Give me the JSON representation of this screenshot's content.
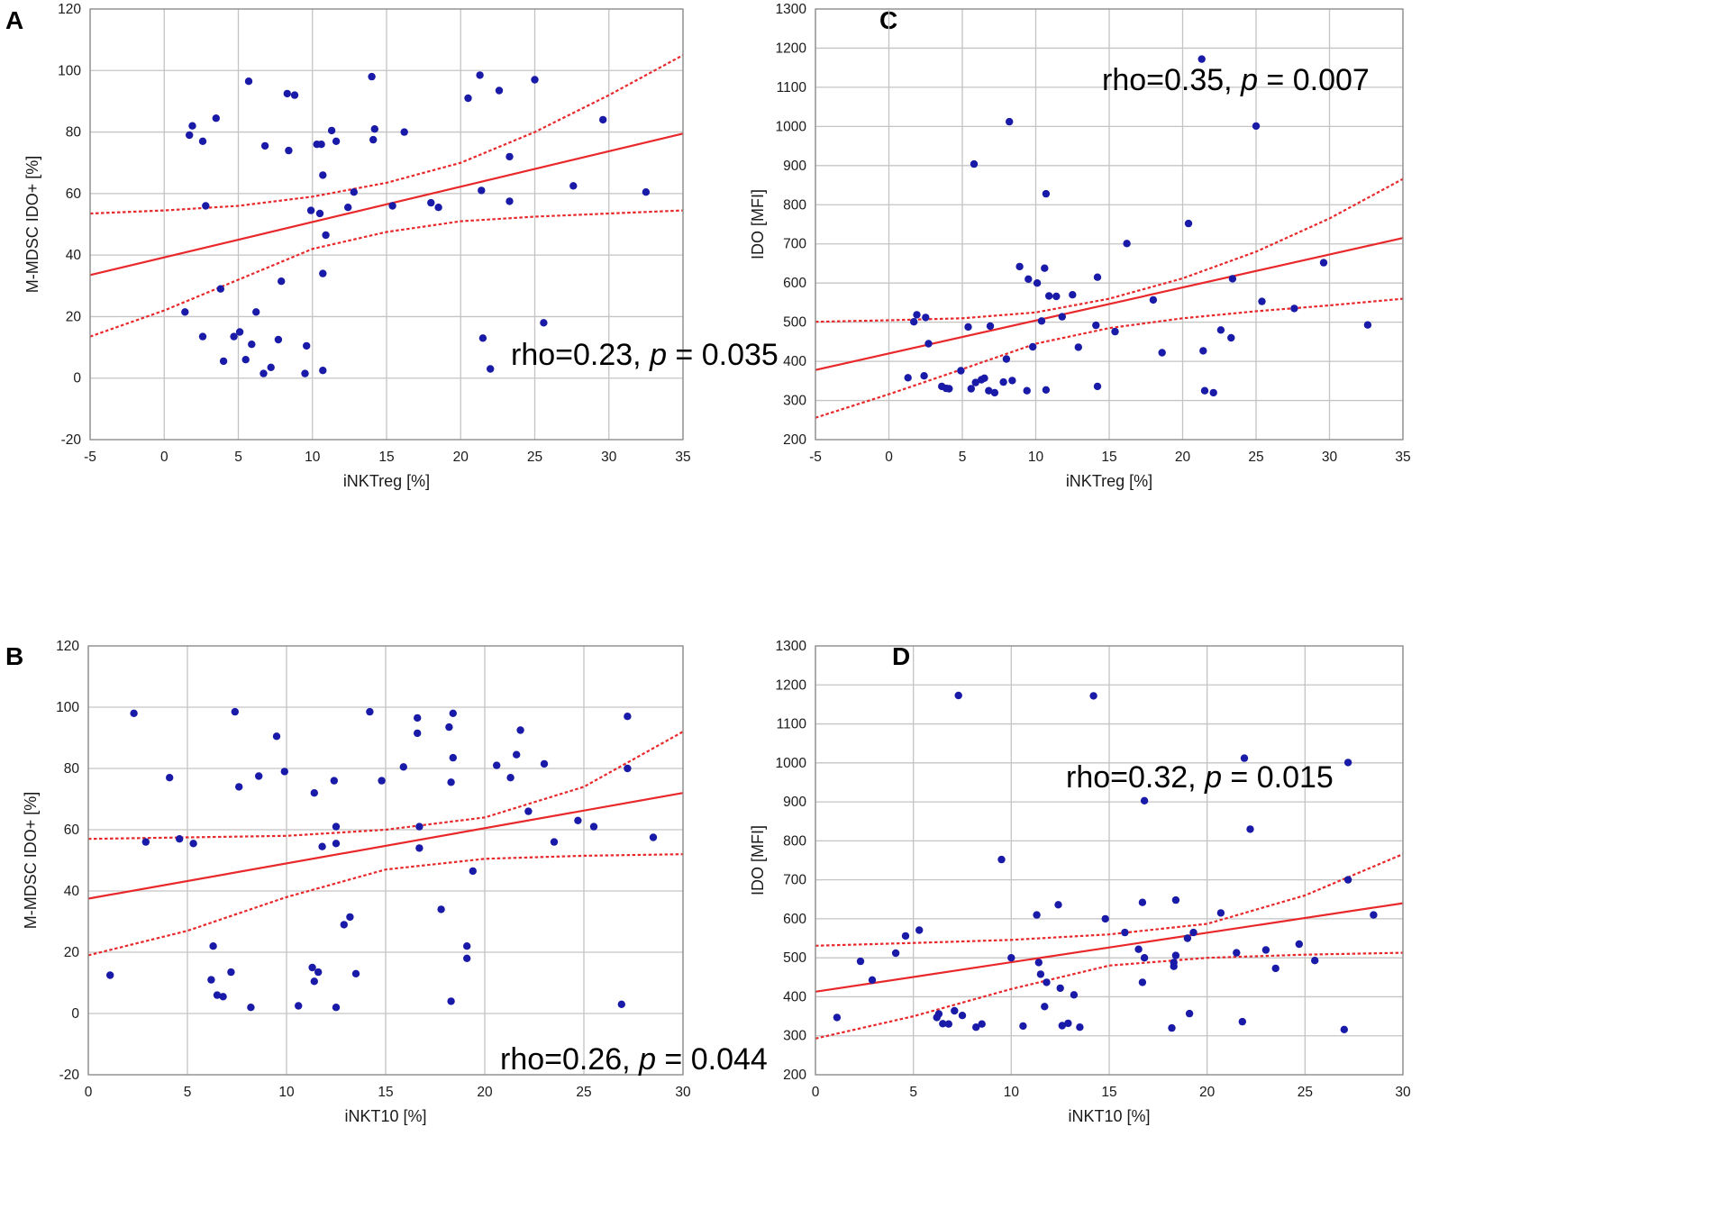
{
  "figure": {
    "point_color": "#1a1aa8",
    "line_color": "#e8282a"
  },
  "chart_data": [
    {
      "id": "A",
      "panel_label": "A",
      "type": "scatter",
      "xlabel": "iNKTreg [%]",
      "ylabel": "M-MDSC IDO+ [%]",
      "xlim": [
        -5,
        35
      ],
      "ylim": [
        -20,
        120
      ],
      "xticks": [
        -5,
        0,
        5,
        10,
        15,
        20,
        25,
        30,
        35
      ],
      "yticks": [
        -20,
        0,
        20,
        40,
        60,
        80,
        100,
        120
      ],
      "annotation": {
        "pre": "rho=0.23, ",
        "italic": "p",
        "post": " = 0.035"
      },
      "fit_line": [
        [
          -5,
          33.5
        ],
        [
          35,
          79.5
        ]
      ],
      "ci_upper": [
        [
          -5,
          53.5
        ],
        [
          0,
          54.5
        ],
        [
          5,
          56
        ],
        [
          10,
          59
        ],
        [
          15,
          63.5
        ],
        [
          20,
          70
        ],
        [
          25,
          80
        ],
        [
          30,
          92
        ],
        [
          35,
          105
        ]
      ],
      "ci_lower": [
        [
          -5,
          13.5
        ],
        [
          0,
          22
        ],
        [
          5,
          32
        ],
        [
          10,
          42
        ],
        [
          15,
          47.5
        ],
        [
          20,
          51
        ],
        [
          25,
          52.5
        ],
        [
          30,
          53.5
        ],
        [
          35,
          54.5
        ]
      ],
      "points": [
        [
          1.4,
          21.5
        ],
        [
          1.7,
          79
        ],
        [
          1.9,
          82
        ],
        [
          2.6,
          13.5
        ],
        [
          2.6,
          77
        ],
        [
          2.8,
          56
        ],
        [
          3.5,
          84.5
        ],
        [
          3.8,
          29
        ],
        [
          4,
          5.5
        ],
        [
          4.7,
          13.5
        ],
        [
          5.1,
          15
        ],
        [
          5.5,
          6
        ],
        [
          5.7,
          96.5
        ],
        [
          5.9,
          11
        ],
        [
          6.2,
          21.5
        ],
        [
          6.7,
          1.5
        ],
        [
          6.8,
          75.5
        ],
        [
          7.2,
          3.5
        ],
        [
          7.7,
          12.5
        ],
        [
          7.9,
          31.5
        ],
        [
          8.3,
          92.5
        ],
        [
          8.4,
          74
        ],
        [
          8.8,
          92
        ],
        [
          9.5,
          1.5
        ],
        [
          9.6,
          10.5
        ],
        [
          9.9,
          54.5
        ],
        [
          10.3,
          76
        ],
        [
          10.5,
          53.5
        ],
        [
          10.6,
          76
        ],
        [
          10.7,
          66
        ],
        [
          10.7,
          34
        ],
        [
          10.7,
          2.5
        ],
        [
          10.9,
          46.5
        ],
        [
          11.3,
          80.5
        ],
        [
          11.6,
          77
        ],
        [
          12.4,
          55.5
        ],
        [
          12.8,
          60.5
        ],
        [
          14,
          98
        ],
        [
          14.1,
          77.5
        ],
        [
          14.2,
          81
        ],
        [
          15.4,
          56
        ],
        [
          16.2,
          80
        ],
        [
          18,
          57
        ],
        [
          18.5,
          55.5
        ],
        [
          20.5,
          91
        ],
        [
          21.3,
          98.5
        ],
        [
          21.4,
          61
        ],
        [
          21.5,
          13
        ],
        [
          22,
          3
        ],
        [
          22.6,
          93.5
        ],
        [
          23.3,
          57.5
        ],
        [
          23.3,
          72
        ],
        [
          25,
          97
        ],
        [
          25.6,
          18
        ],
        [
          27.6,
          62.5
        ],
        [
          29.6,
          84
        ],
        [
          32.5,
          60.5
        ]
      ]
    },
    {
      "id": "B",
      "panel_label": "B",
      "type": "scatter",
      "xlabel": "iNKT10 [%]",
      "ylabel": "M-MDSC IDO+ [%]",
      "xlim": [
        0,
        30
      ],
      "ylim": [
        -20,
        120
      ],
      "xticks": [
        0,
        5,
        10,
        15,
        20,
        25,
        30
      ],
      "yticks": [
        -20,
        0,
        20,
        40,
        60,
        80,
        100,
        120
      ],
      "annotation": {
        "pre": "rho=0.26, ",
        "italic": "p",
        "post": " = 0.044"
      },
      "fit_line": [
        [
          0,
          37.5
        ],
        [
          30,
          72
        ]
      ],
      "ci_upper": [
        [
          0,
          57
        ],
        [
          5,
          57.5
        ],
        [
          10,
          58
        ],
        [
          15,
          60
        ],
        [
          20,
          64
        ],
        [
          25,
          74
        ],
        [
          30,
          92
        ]
      ],
      "ci_lower": [
        [
          0,
          19
        ],
        [
          5,
          27
        ],
        [
          10,
          38
        ],
        [
          15,
          47
        ],
        [
          20,
          50.5
        ],
        [
          25,
          51.5
        ],
        [
          30,
          52
        ]
      ],
      "points": [
        [
          1.1,
          12.5
        ],
        [
          2.3,
          98
        ],
        [
          2.9,
          56
        ],
        [
          4.1,
          77
        ],
        [
          4.6,
          57
        ],
        [
          5.3,
          55.5
        ],
        [
          6.2,
          11
        ],
        [
          6.3,
          22
        ],
        [
          6.5,
          6
        ],
        [
          6.8,
          5.5
        ],
        [
          7.2,
          13.5
        ],
        [
          7.4,
          98.5
        ],
        [
          7.6,
          74
        ],
        [
          8.2,
          2
        ],
        [
          8.6,
          77.5
        ],
        [
          9.5,
          90.5
        ],
        [
          9.9,
          79
        ],
        [
          10.6,
          2.5
        ],
        [
          11.3,
          15
        ],
        [
          11.4,
          72
        ],
        [
          11.4,
          10.5
        ],
        [
          11.6,
          13.5
        ],
        [
          11.8,
          54.5
        ],
        [
          12.4,
          76
        ],
        [
          12.5,
          2
        ],
        [
          12.5,
          61
        ],
        [
          12.5,
          55.5
        ],
        [
          12.9,
          29
        ],
        [
          13.2,
          31.5
        ],
        [
          13.5,
          13
        ],
        [
          14.2,
          98.5
        ],
        [
          14.8,
          76
        ],
        [
          15.9,
          80.5
        ],
        [
          16.6,
          96.5
        ],
        [
          16.6,
          91.5
        ],
        [
          16.7,
          61
        ],
        [
          16.7,
          54
        ],
        [
          17.8,
          34
        ],
        [
          18.2,
          93.5
        ],
        [
          18.3,
          4
        ],
        [
          18.3,
          75.5
        ],
        [
          18.4,
          98
        ],
        [
          18.4,
          83.5
        ],
        [
          19.1,
          22
        ],
        [
          19.1,
          18
        ],
        [
          19.4,
          46.5
        ],
        [
          20.6,
          81
        ],
        [
          21.3,
          77
        ],
        [
          21.6,
          84.5
        ],
        [
          21.8,
          92.5
        ],
        [
          22.2,
          66
        ],
        [
          23,
          81.5
        ],
        [
          23.5,
          56
        ],
        [
          24.7,
          63
        ],
        [
          25.5,
          61
        ],
        [
          26.9,
          3
        ],
        [
          27.2,
          97
        ],
        [
          27.2,
          80
        ],
        [
          28.5,
          57.5
        ]
      ]
    },
    {
      "id": "C",
      "panel_label": "C",
      "type": "scatter",
      "xlabel": "iNKTreg [%]",
      "ylabel": "IDO [MFI]",
      "xlim": [
        -5,
        35
      ],
      "ylim": [
        200,
        1300
      ],
      "xticks": [
        -5,
        0,
        5,
        10,
        15,
        20,
        25,
        30,
        35
      ],
      "yticks": [
        200,
        300,
        400,
        500,
        600,
        700,
        800,
        900,
        1000,
        1100,
        1200,
        1300
      ],
      "annotation": {
        "pre": "rho=0.35, ",
        "italic": "p",
        "post": " = 0.007"
      },
      "fit_line": [
        [
          -5,
          378
        ],
        [
          35,
          715
        ]
      ],
      "ci_upper": [
        [
          -5,
          501
        ],
        [
          0,
          505
        ],
        [
          5,
          510
        ],
        [
          10,
          525
        ],
        [
          15,
          560
        ],
        [
          20,
          612
        ],
        [
          25,
          680
        ],
        [
          30,
          765
        ],
        [
          35,
          866
        ]
      ],
      "ci_lower": [
        [
          -5,
          256
        ],
        [
          0,
          316
        ],
        [
          5,
          380
        ],
        [
          10,
          445
        ],
        [
          15,
          485
        ],
        [
          20,
          510
        ],
        [
          25,
          528
        ],
        [
          30,
          543
        ],
        [
          35,
          560
        ]
      ],
      "points": [
        [
          1.3,
          358
        ],
        [
          1.7,
          501
        ],
        [
          1.9,
          519
        ],
        [
          2.4,
          363
        ],
        [
          2.5,
          512
        ],
        [
          2.7,
          445
        ],
        [
          3.6,
          336
        ],
        [
          3.9,
          331
        ],
        [
          4.1,
          330
        ],
        [
          4.9,
          376
        ],
        [
          5.4,
          488
        ],
        [
          5.6,
          330
        ],
        [
          5.8,
          904
        ],
        [
          5.9,
          346
        ],
        [
          6.3,
          353
        ],
        [
          6.5,
          357
        ],
        [
          6.8,
          325
        ],
        [
          6.9,
          490
        ],
        [
          7.2,
          320
        ],
        [
          7.8,
          347
        ],
        [
          8,
          406
        ],
        [
          8.2,
          1012
        ],
        [
          8.4,
          351
        ],
        [
          8.9,
          642
        ],
        [
          9.4,
          325
        ],
        [
          9.5,
          610
        ],
        [
          9.8,
          437
        ],
        [
          10.1,
          600
        ],
        [
          10.4,
          503
        ],
        [
          10.6,
          638
        ],
        [
          10.7,
          828
        ],
        [
          10.7,
          327
        ],
        [
          10.9,
          567
        ],
        [
          11.4,
          566
        ],
        [
          11.8,
          514
        ],
        [
          12.5,
          570
        ],
        [
          12.9,
          436
        ],
        [
          14.1,
          492
        ],
        [
          14.2,
          615
        ],
        [
          14.2,
          336
        ],
        [
          15.4,
          476
        ],
        [
          16.2,
          701
        ],
        [
          18,
          557
        ],
        [
          18.6,
          422
        ],
        [
          20.4,
          752
        ],
        [
          21.3,
          1172
        ],
        [
          21.4,
          427
        ],
        [
          21.5,
          325
        ],
        [
          22.1,
          320
        ],
        [
          22.6,
          480
        ],
        [
          23.3,
          460
        ],
        [
          23.4,
          611
        ],
        [
          25,
          1001
        ],
        [
          25.4,
          553
        ],
        [
          27.6,
          535
        ],
        [
          29.6,
          652
        ],
        [
          32.6,
          493
        ]
      ]
    },
    {
      "id": "D",
      "panel_label": "D",
      "type": "scatter",
      "xlabel": "iNKT10 [%]",
      "ylabel": "IDO [MFI]",
      "xlim": [
        0,
        30
      ],
      "ylim": [
        200,
        1300
      ],
      "xticks": [
        0,
        5,
        10,
        15,
        20,
        25,
        30
      ],
      "yticks": [
        200,
        300,
        400,
        500,
        600,
        700,
        800,
        900,
        1000,
        1100,
        1200,
        1300
      ],
      "annotation": {
        "pre": "rho=0.32, ",
        "italic": "p",
        "post": " = 0.015"
      },
      "fit_line": [
        [
          0,
          413
        ],
        [
          30,
          640
        ]
      ],
      "ci_upper": [
        [
          0,
          531
        ],
        [
          5,
          538
        ],
        [
          10,
          546
        ],
        [
          15,
          560
        ],
        [
          20,
          587
        ],
        [
          25,
          660
        ],
        [
          30,
          766
        ]
      ],
      "ci_lower": [
        [
          0,
          293
        ],
        [
          5,
          350
        ],
        [
          10,
          420
        ],
        [
          15,
          480
        ],
        [
          20,
          500
        ],
        [
          25,
          508
        ],
        [
          30,
          513
        ]
      ],
      "points": [
        [
          1.1,
          347
        ],
        [
          2.3,
          491
        ],
        [
          2.9,
          443
        ],
        [
          4.1,
          512
        ],
        [
          4.6,
          556
        ],
        [
          5.3,
          571
        ],
        [
          6.2,
          347
        ],
        [
          6.3,
          356
        ],
        [
          6.5,
          331
        ],
        [
          6.8,
          330
        ],
        [
          7.1,
          364
        ],
        [
          7.3,
          1173
        ],
        [
          7.5,
          352
        ],
        [
          8.2,
          322
        ],
        [
          8.5,
          330
        ],
        [
          9.5,
          752
        ],
        [
          10,
          500
        ],
        [
          10.6,
          325
        ],
        [
          11.3,
          610
        ],
        [
          11.4,
          488
        ],
        [
          11.5,
          458
        ],
        [
          11.7,
          375
        ],
        [
          11.8,
          437
        ],
        [
          12.4,
          636
        ],
        [
          12.5,
          422
        ],
        [
          12.6,
          326
        ],
        [
          12.9,
          332
        ],
        [
          13.2,
          405
        ],
        [
          13.5,
          322
        ],
        [
          14.2,
          1172
        ],
        [
          14.8,
          600
        ],
        [
          15.8,
          565
        ],
        [
          16.5,
          522
        ],
        [
          16.7,
          642
        ],
        [
          16.8,
          903
        ],
        [
          16.7,
          437
        ],
        [
          16.8,
          500
        ],
        [
          18.2,
          320
        ],
        [
          18.3,
          478
        ],
        [
          18.3,
          488
        ],
        [
          18.4,
          648
        ],
        [
          18.4,
          506
        ],
        [
          19,
          550
        ],
        [
          19.1,
          357
        ],
        [
          19.3,
          565
        ],
        [
          20.7,
          615
        ],
        [
          21.5,
          513
        ],
        [
          21.8,
          336
        ],
        [
          21.9,
          1012
        ],
        [
          22.2,
          830
        ],
        [
          23,
          520
        ],
        [
          23.5,
          473
        ],
        [
          24.7,
          535
        ],
        [
          25.5,
          493
        ],
        [
          27,
          316
        ],
        [
          27.2,
          1001
        ],
        [
          27.2,
          700
        ],
        [
          28.5,
          610
        ]
      ]
    }
  ]
}
